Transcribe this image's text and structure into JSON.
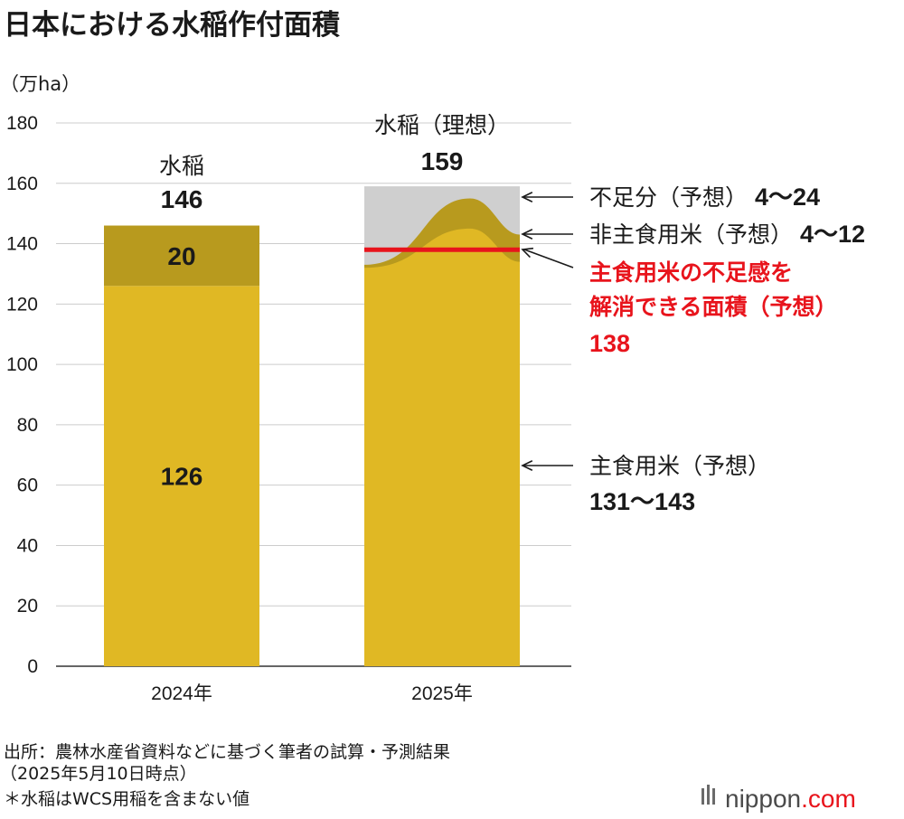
{
  "title": "日本における水稲作付面積",
  "colors": {
    "main_rice": "#e0b824",
    "non_staple_rice": "#b89a1e",
    "shortfall": "#cfcfcf",
    "highlight_red": "#e8141c",
    "grid": "#cccccc",
    "text": "#1a1a1a"
  },
  "chart_data": {
    "type": "bar",
    "stacked": true,
    "unit_label": "（万ha）",
    "ylim": [
      0,
      180
    ],
    "yticks": [
      0,
      20,
      40,
      60,
      80,
      100,
      120,
      140,
      160,
      180
    ],
    "grid": true,
    "categories": [
      "2024年",
      "2025年"
    ],
    "bars": [
      {
        "category": "2024年",
        "label": "水稲",
        "total": 146,
        "total_label": "146",
        "segments": [
          {
            "name": "主食用米",
            "value": 126,
            "value_label": "126",
            "color": "#e0b824"
          },
          {
            "name": "非主食用米",
            "value": 20,
            "value_label": "20",
            "color": "#b89a1e"
          }
        ]
      },
      {
        "category": "2025年",
        "label": "水稲（理想）",
        "total": 159,
        "total_label": "159",
        "projection": {
          "staple_range": [
            131,
            143
          ],
          "non_staple_range": [
            4,
            12
          ],
          "shortfall_range": [
            4,
            24
          ],
          "resolve_line": 138
        }
      }
    ],
    "annotations": [
      {
        "text": "不足分（予想）",
        "value": "4〜24",
        "color": "#1a1a1a",
        "target": 152
      },
      {
        "text": "非主食用米（予想）",
        "value": "4〜12",
        "color": "#1a1a1a",
        "target": 143
      },
      {
        "lines": [
          "主食用米の不足感を",
          "解消できる面積（予想）"
        ],
        "value": "138",
        "color": "#e8141c",
        "target": 138
      },
      {
        "text": "主食用米（予想）",
        "value": "131〜143",
        "color": "#1a1a1a",
        "target": 66
      }
    ]
  },
  "notes": [
    "出所：農林水産省資料などに基づく筆者の試算・予測結果",
    "（2025年5月10日時点）",
    "＊水稲はWCS用稲を含まない値"
  ],
  "logo": {
    "name": "nippon",
    "tld": ".com",
    "icon": "nippon-logo-bars-icon"
  }
}
